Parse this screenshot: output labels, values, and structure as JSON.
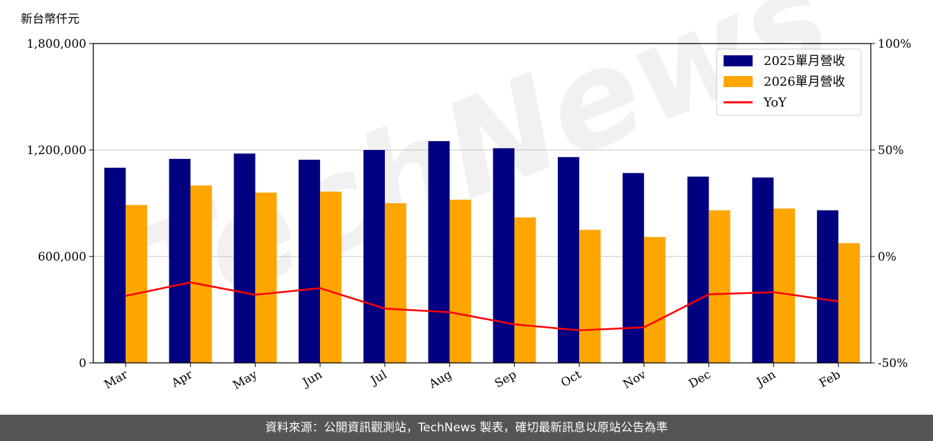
{
  "chart_data": {
    "type": "bar",
    "y_unit_label": "新台幣仟元",
    "categories": [
      "Mar",
      "Apr",
      "May",
      "Jun",
      "Jul",
      "Aug",
      "Sep",
      "Oct",
      "Nov",
      "Dec",
      "Jan",
      "Feb"
    ],
    "series": [
      {
        "name": "2025單月營收",
        "type": "bar",
        "axis": "left",
        "color": "#000080",
        "values": [
          1100000,
          1150000,
          1180000,
          1145000,
          1200000,
          1250000,
          1210000,
          1160000,
          1070000,
          1050000,
          1045000,
          860000
        ]
      },
      {
        "name": "2026單月營收",
        "type": "bar",
        "axis": "left",
        "color": "#ffa500",
        "values": [
          890000,
          1000000,
          960000,
          965000,
          900000,
          920000,
          820000,
          750000,
          710000,
          860000,
          870000,
          675000
        ]
      },
      {
        "name": "YoY",
        "type": "line",
        "axis": "right",
        "color": "#ff0000",
        "values": [
          -18.5,
          -12.2,
          -18.0,
          -14.9,
          -24.5,
          -26.2,
          -31.9,
          -34.7,
          -33.3,
          -17.8,
          -16.8,
          -21.1
        ]
      }
    ],
    "left_axis": {
      "ylim": [
        0,
        1800000
      ],
      "ticks": [
        "0",
        "600,000",
        "1,200,000",
        "1,800,000"
      ]
    },
    "right_axis": {
      "ylim": [
        -50,
        100
      ],
      "ticks": [
        "-50%",
        "0%",
        "50%",
        "100%"
      ]
    },
    "grid": true,
    "legend_position": "top-right",
    "watermark": "TechNews"
  },
  "footer": {
    "source_text": "資料來源：公開資訊觀測站，TechNews 製表，確切最新訊息以原站公告為準"
  }
}
